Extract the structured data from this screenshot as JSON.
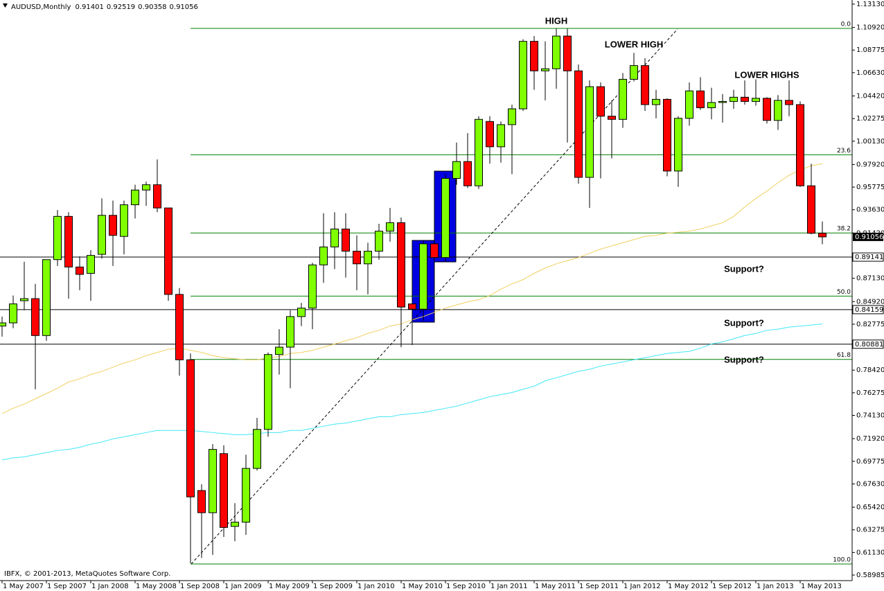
{
  "chart_data": {
    "type": "candlestick",
    "symbol": "AUDUSD,Monthly",
    "copyright": "IBFX, © 2001-2013, MetaQuotes Software Corp.",
    "categories": [
      "1 May 2007",
      null,
      null,
      null,
      "1 Sep 2007",
      null,
      null,
      null,
      "1 Jan 2008",
      null,
      null,
      null,
      "1 May 2008",
      null,
      null,
      null,
      "1 Sep 2008",
      null,
      null,
      null,
      "1 Jan 2009",
      null,
      null,
      null,
      "1 May 2009",
      null,
      null,
      null,
      "1 Sep 2009",
      null,
      null,
      null,
      "1 Jan 2010",
      null,
      null,
      null,
      "1 May 2010",
      null,
      null,
      null,
      "1 Sep 2010",
      null,
      null,
      null,
      "1 Jan 2011",
      null,
      null,
      null,
      "1 May 2011",
      null,
      null,
      null,
      "1 Sep 2011",
      null,
      null,
      null,
      "1 Jan 2012",
      null,
      null,
      null,
      "1 May 2012",
      null,
      null,
      null,
      "1 Sep 2012",
      null,
      null,
      null,
      "1 Jan 2013",
      null,
      null,
      null,
      "1 May 2013",
      null,
      null
    ],
    "open": [
      0.826,
      0.829,
      0.85,
      0.852,
      0.817,
      0.889,
      0.93,
      0.882,
      0.876,
      0.894,
      0.931,
      0.911,
      0.941,
      0.955,
      0.96,
      0.938,
      0.856,
      0.794,
      0.67,
      0.649,
      0.705,
      0.636,
      0.64,
      0.691,
      0.728,
      0.799,
      0.806,
      0.835,
      0.843,
      0.884,
      0.901,
      0.918,
      0.897,
      0.885,
      0.897,
      0.916,
      0.924,
      0.847,
      0.842,
      0.904,
      0.891,
      0.966,
      0.982,
      0.959,
      1.02,
      0.996,
      1.017,
      1.032,
      1.096,
      1.068,
      1.07,
      1.101,
      1.068,
      0.967,
      1.053,
      1.025,
      1.022,
      1.06,
      1.073,
      1.036,
      1.041,
      0.973,
      1.023,
      1.049,
      1.033,
      1.038,
      1.039,
      1.043,
      1.039,
      1.042,
      1.021,
      1.04,
      1.036,
      0.959,
      0.91401
    ],
    "high": [
      0.835,
      0.855,
      0.887,
      0.866,
      0.889,
      0.936,
      0.934,
      0.892,
      0.898,
      0.947,
      0.945,
      0.945,
      0.96,
      0.963,
      0.984,
      0.938,
      0.862,
      0.8,
      0.676,
      0.714,
      0.713,
      0.658,
      0.704,
      0.739,
      0.801,
      0.823,
      0.841,
      0.848,
      0.886,
      0.933,
      0.934,
      0.933,
      0.912,
      0.905,
      0.923,
      0.938,
      0.929,
      0.873,
      0.907,
      0.92,
      0.97,
      1.0,
      1.009,
      1.025,
      1.025,
      1.02,
      1.036,
      1.098,
      1.101,
      1.096,
      1.108,
      1.108,
      1.074,
      1.059,
      1.057,
      1.04,
      1.066,
      1.085,
      1.08,
      1.05,
      1.042,
      1.025,
      1.057,
      1.062,
      1.052,
      1.046,
      1.05,
      1.059,
      1.06,
      1.043,
      1.045,
      1.059,
      1.039,
      0.98,
      0.92519
    ],
    "low": [
      0.816,
      0.824,
      0.841,
      0.766,
      0.812,
      0.883,
      0.852,
      0.86,
      0.85,
      0.89,
      0.883,
      0.894,
      0.928,
      0.94,
      0.934,
      0.85,
      0.779,
      0.601,
      0.606,
      0.609,
      0.626,
      0.622,
      0.628,
      0.689,
      0.721,
      0.78,
      0.767,
      0.826,
      0.823,
      0.867,
      0.88,
      0.872,
      0.86,
      0.856,
      0.889,
      0.906,
      0.806,
      0.808,
      0.831,
      0.873,
      0.887,
      0.96,
      0.957,
      0.956,
      0.98,
      0.981,
      0.97,
      1.03,
      1.05,
      1.04,
      1.051,
      1.0,
      0.961,
      0.938,
      0.966,
      0.985,
      1.014,
      1.058,
      1.03,
      1.023,
      0.968,
      0.958,
      1.016,
      1.031,
      1.022,
      1.019,
      1.032,
      1.036,
      1.035,
      1.018,
      1.012,
      1.025,
      0.958,
      0.913,
      0.90358
    ],
    "close": [
      0.829,
      0.847,
      0.852,
      0.817,
      0.889,
      0.93,
      0.882,
      0.875,
      0.893,
      0.931,
      0.912,
      0.941,
      0.955,
      0.96,
      0.938,
      0.856,
      0.794,
      0.664,
      0.649,
      0.709,
      0.635,
      0.64,
      0.691,
      0.728,
      0.799,
      0.806,
      0.835,
      0.843,
      0.884,
      0.901,
      0.918,
      0.897,
      0.885,
      0.897,
      0.916,
      0.924,
      0.844,
      0.842,
      0.904,
      0.891,
      0.966,
      0.982,
      0.959,
      1.022,
      0.996,
      1.017,
      1.032,
      1.096,
      1.068,
      1.07,
      1.101,
      1.068,
      0.967,
      1.053,
      1.025,
      1.022,
      1.06,
      1.073,
      1.036,
      1.041,
      0.973,
      1.023,
      1.049,
      1.033,
      1.038,
      1.039,
      1.043,
      1.039,
      1.042,
      1.021,
      1.04,
      1.036,
      0.959,
      0.914,
      0.91056
    ],
    "up_color": "#7fff00",
    "down_color": "#ff0000",
    "moving_averages": [
      {
        "color": "#f0d060",
        "values": [
          0.743,
          0.748,
          0.752,
          0.757,
          0.762,
          0.767,
          0.773,
          0.776,
          0.78,
          0.783,
          0.787,
          0.791,
          0.794,
          0.798,
          0.801,
          0.804,
          0.805,
          0.803,
          0.801,
          0.798,
          0.796,
          0.795,
          0.794,
          0.794,
          0.796,
          0.797,
          0.8,
          0.801,
          0.803,
          0.806,
          0.809,
          0.812,
          0.815,
          0.819,
          0.822,
          0.826,
          0.828,
          0.832,
          0.835,
          0.839,
          0.843,
          0.846,
          0.849,
          0.851,
          0.855,
          0.861,
          0.866,
          0.87,
          0.876,
          0.881,
          0.885,
          0.888,
          0.891,
          0.895,
          0.899,
          0.902,
          0.905,
          0.908,
          0.911,
          0.912,
          0.914,
          0.915,
          0.916,
          0.918,
          0.921,
          0.924,
          0.93,
          0.939,
          0.947,
          0.954,
          0.962,
          0.969,
          0.974,
          0.978,
          0.98
        ]
      },
      {
        "color": "#40e8f8",
        "values": [
          0.699,
          0.701,
          0.702,
          0.704,
          0.706,
          0.708,
          0.709,
          0.711,
          0.714,
          0.716,
          0.719,
          0.721,
          0.723,
          0.725,
          0.727,
          0.727,
          0.727,
          0.727,
          0.726,
          0.725,
          0.724,
          0.723,
          0.723,
          0.724,
          0.725,
          0.725,
          0.727,
          0.727,
          0.729,
          0.731,
          0.733,
          0.734,
          0.736,
          0.738,
          0.74,
          0.74,
          0.742,
          0.743,
          0.744,
          0.746,
          0.748,
          0.75,
          0.753,
          0.756,
          0.759,
          0.761,
          0.763,
          0.766,
          0.769,
          0.774,
          0.777,
          0.78,
          0.783,
          0.785,
          0.788,
          0.79,
          0.792,
          0.794,
          0.796,
          0.798,
          0.8,
          0.801,
          0.802,
          0.805,
          0.809,
          0.811,
          0.814,
          0.817,
          0.819,
          0.822,
          0.823,
          0.825,
          0.826,
          0.827,
          0.828
        ]
      }
    ],
    "fibonacci": {
      "color": "#008000",
      "levels": [
        {
          "label": "0.0",
          "value": 1.1083
        },
        {
          "label": "23.6",
          "value": 0.9884
        },
        {
          "label": "38.2",
          "value": 0.9143
        },
        {
          "label": "50.0",
          "value": 0.8544
        },
        {
          "label": "61.8",
          "value": 0.7944
        },
        {
          "label": "100.0",
          "value": 0.6004
        }
      ]
    },
    "price_lines": [
      0.89141,
      0.84159,
      0.80881
    ],
    "ylim": [
      0.5846,
      1.1352
    ],
    "yticks": [
      {
        "value": 1.1313,
        "label": "1.13130"
      },
      {
        "value": 1.1092,
        "label": "1.10920"
      },
      {
        "value": 1.08775,
        "label": "1.08775"
      },
      {
        "value": 1.0663,
        "label": "1.06630"
      },
      {
        "value": 1.0442,
        "label": "1.04420"
      },
      {
        "value": 1.02275,
        "label": "1.02275"
      },
      {
        "value": 1.0013,
        "label": "1.00130"
      },
      {
        "value": 0.9792,
        "label": "0.97920"
      },
      {
        "value": 0.95775,
        "label": "0.95775"
      },
      {
        "value": 0.9363,
        "label": "0.93630"
      },
      {
        "value": 0.9142,
        "label": "0.91420"
      },
      {
        "value": 0.8713,
        "label": "0.87130"
      },
      {
        "value": 0.8492,
        "label": "0.84920"
      },
      {
        "value": 0.82775,
        "label": "0.82775"
      },
      {
        "value": 0.7842,
        "label": "0.78420"
      },
      {
        "value": 0.76275,
        "label": "0.76275"
      },
      {
        "value": 0.7413,
        "label": "0.74130"
      },
      {
        "value": 0.7192,
        "label": "0.71920"
      },
      {
        "value": 0.69775,
        "label": "0.69775"
      },
      {
        "value": 0.6763,
        "label": "0.67630"
      },
      {
        "value": 0.6542,
        "label": "0.65420"
      },
      {
        "value": 0.63275,
        "label": "0.63275"
      },
      {
        "value": 0.6113,
        "label": "0.61130"
      },
      {
        "value": 0.58985,
        "label": "0.58985"
      }
    ],
    "annotations": [
      "HIGH",
      "LOWER HIGH",
      "LOWER HIGHS",
      "Support?",
      "Support?",
      "Support?"
    ]
  }
}
